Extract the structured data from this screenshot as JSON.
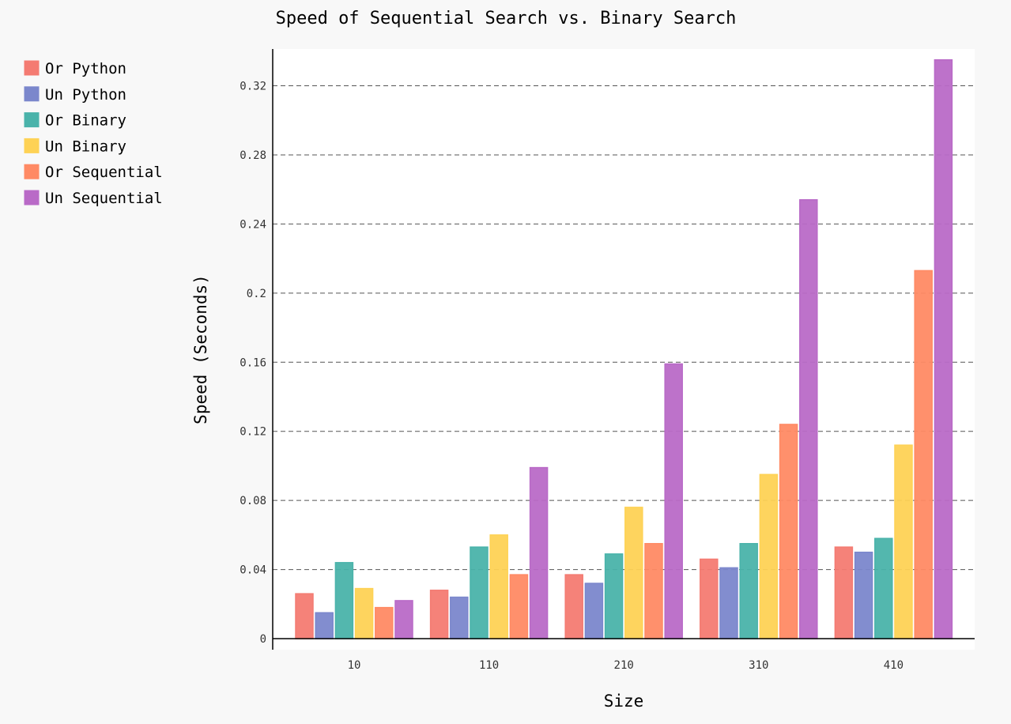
{
  "chart_data": {
    "type": "bar",
    "title": "Speed of Sequential Search vs. Binary Search",
    "xlabel": "Size",
    "ylabel": "Speed (Seconds)",
    "categories": [
      "10",
      "110",
      "210",
      "310",
      "410"
    ],
    "ylim": [
      0,
      0.342
    ],
    "yticks": [
      0,
      0.04,
      0.08,
      0.12,
      0.16,
      0.2,
      0.24,
      0.28,
      0.32
    ],
    "ytick_labels": [
      "0",
      "0.04",
      "0.08",
      "0.12",
      "0.16",
      "0.2",
      "0.24",
      "0.28",
      "0.32"
    ],
    "grid": "horizontal dashed",
    "legend_position": "left",
    "series": [
      {
        "name": "Or Python",
        "color": "#f47b72",
        "values": [
          0.026,
          0.028,
          0.037,
          0.046,
          0.053
        ]
      },
      {
        "name": "Un Python",
        "color": "#7b87cc",
        "values": [
          0.015,
          0.024,
          0.032,
          0.041,
          0.05
        ]
      },
      {
        "name": "Or Binary",
        "color": "#4ab3aa",
        "values": [
          0.044,
          0.053,
          0.049,
          0.055,
          0.058
        ]
      },
      {
        "name": "Un Binary",
        "color": "#fed255",
        "values": [
          0.029,
          0.06,
          0.076,
          0.095,
          0.112
        ]
      },
      {
        "name": "Or Sequential",
        "color": "#ff8a64",
        "values": [
          0.018,
          0.037,
          0.055,
          0.124,
          0.213
        ]
      },
      {
        "name": "Un Sequential",
        "color": "#b96ac7",
        "values": [
          0.022,
          0.099,
          0.159,
          0.254,
          0.335
        ]
      }
    ]
  }
}
